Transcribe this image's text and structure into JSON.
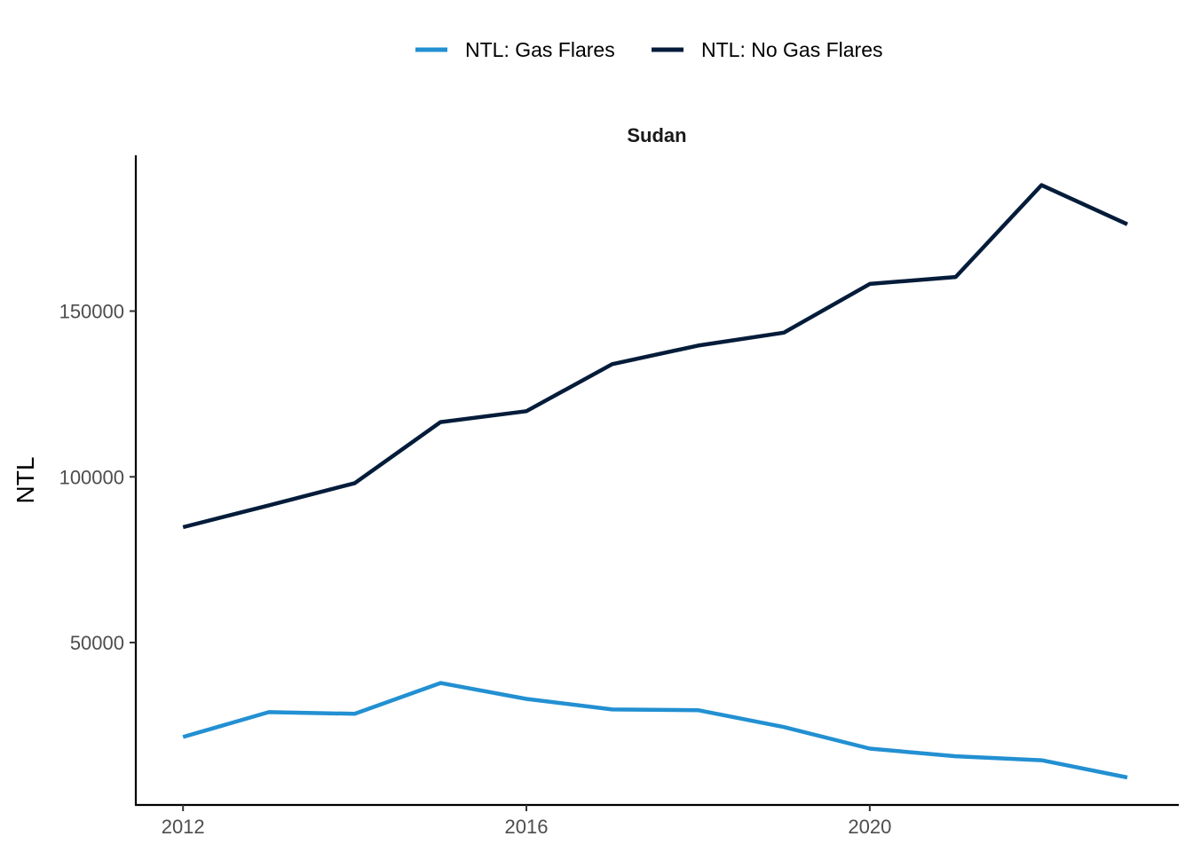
{
  "chart_data": {
    "type": "line",
    "title": "Sudan",
    "xlabel": "",
    "ylabel": "NTL",
    "x": [
      2012,
      2013,
      2014,
      2015,
      2016,
      2017,
      2018,
      2019,
      2020,
      2021,
      2022,
      2023
    ],
    "xticks": [
      2012,
      2016,
      2020
    ],
    "yticks": [
      50000,
      100000,
      150000
    ],
    "xlim": [
      2011.45,
      2023.6
    ],
    "ylim": [
      1000,
      197000
    ],
    "grid": false,
    "legend_position": "top",
    "series": [
      {
        "name": "NTL: Gas Flares",
        "color": "#2290d2",
        "values": [
          21500,
          29000,
          28500,
          37800,
          33000,
          29800,
          29600,
          24500,
          18000,
          15700,
          14500,
          9300
        ]
      },
      {
        "name": "NTL: No Gas Flares",
        "color": "#041c3a",
        "values": [
          84800,
          91400,
          98100,
          116500,
          119800,
          134000,
          139600,
          143500,
          158200,
          160300,
          188000,
          176200
        ]
      }
    ]
  }
}
